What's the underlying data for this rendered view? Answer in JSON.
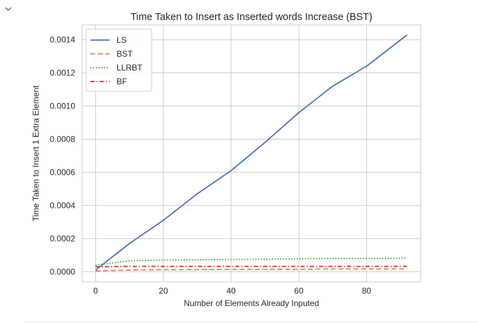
{
  "cell": {
    "collapse_icon": "chevron-down-icon"
  },
  "chart_data": {
    "type": "line",
    "title": "Time Taken to Insert as Inserted words Increase (BST)",
    "xlabel": "Number of Elements Already Inputed",
    "ylabel": "Time Taken to Insert 1 Extra Element",
    "xlim": [
      -4,
      96
    ],
    "ylim": [
      -6.14e-05,
      0.00149
    ],
    "grid": true,
    "legend": "top-left",
    "xticks": [
      {
        "value": 0,
        "label": "0"
      },
      {
        "value": 20,
        "label": "20"
      },
      {
        "value": 40,
        "label": "40"
      },
      {
        "value": 60,
        "label": "60"
      },
      {
        "value": 80,
        "label": "80"
      }
    ],
    "yticks": [
      {
        "value": 0,
        "label": "0.0000"
      },
      {
        "value": 0.0002,
        "label": "0.0002"
      },
      {
        "value": 0.0004,
        "label": "0.0004"
      },
      {
        "value": 0.0006,
        "label": "0.0006"
      },
      {
        "value": 0.0008,
        "label": "0.0008"
      },
      {
        "value": 0.001,
        "label": "0.0010"
      },
      {
        "value": 0.0012,
        "label": "0.0012"
      },
      {
        "value": 0.0014,
        "label": "0.0014"
      }
    ],
    "x": [
      0,
      10,
      20,
      30,
      40,
      50,
      60,
      70,
      80,
      92
    ],
    "series": [
      {
        "name": "LS",
        "style": "solid",
        "color": "#4c72b0",
        "values": [
          1e-05,
          0.00017,
          0.00031,
          0.00047,
          0.00061,
          0.00078,
          0.00096,
          0.00112,
          0.00124,
          0.00143
        ]
      },
      {
        "name": "BST",
        "style": "dashed",
        "color": "#dd8452",
        "values": [
          5e-06,
          1e-05,
          1.2e-05,
          1.3e-05,
          1.4e-05,
          1.5e-05,
          1.5e-05,
          1.6e-05,
          1.6e-05,
          1.7e-05
        ]
      },
      {
        "name": "LLRBT",
        "style": "dotted",
        "color": "#2ca02c",
        "values": [
          4e-05,
          6.5e-05,
          7e-05,
          7.2e-05,
          7.4e-05,
          7.6e-05,
          7.8e-05,
          8e-05,
          8e-05,
          8.2e-05
        ]
      },
      {
        "name": "BF",
        "style": "dashdot",
        "color": "#d62728",
        "values": [
          3e-05,
          3.2e-05,
          3.2e-05,
          3.2e-05,
          3.2e-05,
          3.2e-05,
          3.2e-05,
          3.2e-05,
          3.2e-05,
          3.2e-05
        ]
      }
    ]
  }
}
